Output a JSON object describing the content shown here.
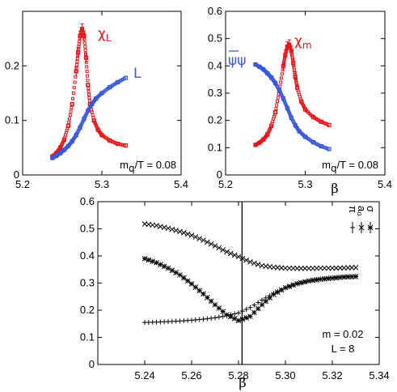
{
  "chart_data": [
    {
      "type": "scatter",
      "xlim": [
        5.2,
        5.4
      ],
      "ylim": [
        0,
        0.3
      ],
      "xticks": [
        "5.2",
        "5.3",
        "5.4"
      ],
      "yticks": [
        "0",
        "0.1",
        "0.2"
      ],
      "xlabel": "",
      "ylabel": "",
      "annotation": "m_q/T = 0.08",
      "grid": false,
      "series": [
        {
          "name": "χ_L",
          "color": "#e8161b",
          "x": [
            5.2375,
            5.2425,
            5.2475,
            5.2525,
            5.2575,
            5.2625,
            5.2675,
            5.27,
            5.2725,
            5.275,
            5.2775,
            5.28,
            5.2825,
            5.285,
            5.29,
            5.295,
            5.3,
            5.31,
            5.32,
            5.33
          ],
          "y": [
            0.034,
            0.04,
            0.05,
            0.065,
            0.09,
            0.13,
            0.19,
            0.225,
            0.255,
            0.268,
            0.255,
            0.215,
            0.165,
            0.13,
            0.1,
            0.083,
            0.073,
            0.063,
            0.057,
            0.054
          ]
        },
        {
          "name": "L",
          "color": "#3a57d8",
          "x": [
            5.2375,
            5.2425,
            5.2475,
            5.2525,
            5.2575,
            5.2625,
            5.2675,
            5.2725,
            5.2775,
            5.2825,
            5.2875,
            5.2925,
            5.3,
            5.31,
            5.32,
            5.33
          ],
          "y": [
            0.031,
            0.035,
            0.04,
            0.046,
            0.053,
            0.062,
            0.073,
            0.087,
            0.103,
            0.118,
            0.13,
            0.14,
            0.15,
            0.161,
            0.17,
            0.178
          ]
        }
      ]
    },
    {
      "type": "scatter",
      "xlim": [
        5.2,
        5.4
      ],
      "ylim": [
        0,
        0.6
      ],
      "xticks": [
        "5.2",
        "5.3",
        "5.4"
      ],
      "yticks": [
        "0",
        "0.1",
        "0.2",
        "0.3",
        "0.4",
        "0.5",
        "0.6"
      ],
      "xlabel": "β",
      "ylabel": "",
      "annotation": "m_q/T = 0.08",
      "grid": false,
      "series": [
        {
          "name": "χ_m",
          "color": "#e8161b",
          "x": [
            5.2375,
            5.2425,
            5.2475,
            5.2525,
            5.2575,
            5.2625,
            5.2675,
            5.2725,
            5.275,
            5.2775,
            5.28,
            5.2825,
            5.285,
            5.2875,
            5.29,
            5.295,
            5.3,
            5.31,
            5.32,
            5.33
          ],
          "y": [
            0.11,
            0.118,
            0.13,
            0.148,
            0.18,
            0.23,
            0.31,
            0.4,
            0.44,
            0.47,
            0.478,
            0.455,
            0.41,
            0.36,
            0.32,
            0.27,
            0.24,
            0.212,
            0.195,
            0.183
          ]
        },
        {
          "name": "ψ̄ψ",
          "color": "#3a57d8",
          "x": [
            5.2375,
            5.2425,
            5.2475,
            5.2525,
            5.2575,
            5.2625,
            5.2675,
            5.2725,
            5.2775,
            5.2825,
            5.2875,
            5.2925,
            5.3,
            5.31,
            5.32,
            5.33
          ],
          "y": [
            0.405,
            0.397,
            0.387,
            0.373,
            0.357,
            0.337,
            0.31,
            0.28,
            0.245,
            0.21,
            0.182,
            0.16,
            0.14,
            0.12,
            0.105,
            0.095
          ]
        }
      ]
    },
    {
      "type": "scatter",
      "xlim": [
        5.22,
        5.34
      ],
      "ylim": [
        0,
        0.6
      ],
      "xticks": [
        "5.24",
        "5.26",
        "5.28",
        "5.30",
        "5.32",
        "5.34"
      ],
      "yticks": [
        "0",
        "0.1",
        "0.2",
        "0.3",
        "0.4",
        "0.5",
        "0.6"
      ],
      "xlabel": "β",
      "ylabel": "",
      "annotation_lines": [
        "m = 0.02",
        "L = 8"
      ],
      "vertical_line_x": 5.2815,
      "grid": false,
      "legend_position": "top-right",
      "series": [
        {
          "name": "π",
          "color": "#000000",
          "marker": "plus",
          "x": [
            5.24,
            5.245,
            5.25,
            5.255,
            5.26,
            5.265,
            5.27,
            5.275,
            5.28,
            5.285,
            5.29,
            5.295,
            5.3,
            5.305,
            5.31,
            5.315,
            5.32,
            5.325,
            5.33
          ],
          "y": [
            0.155,
            0.156,
            0.158,
            0.16,
            0.163,
            0.167,
            0.172,
            0.18,
            0.19,
            0.21,
            0.237,
            0.262,
            0.282,
            0.297,
            0.308,
            0.315,
            0.32,
            0.323,
            0.325
          ]
        },
        {
          "name": "a₀",
          "color": "#000000",
          "marker": "cross",
          "x": [
            5.24,
            5.245,
            5.25,
            5.255,
            5.26,
            5.265,
            5.27,
            5.275,
            5.28,
            5.285,
            5.29,
            5.295,
            5.3,
            5.305,
            5.31,
            5.315,
            5.32,
            5.325,
            5.33
          ],
          "y": [
            0.518,
            0.512,
            0.502,
            0.49,
            0.476,
            0.458,
            0.437,
            0.415,
            0.397,
            0.378,
            0.364,
            0.358,
            0.355,
            0.354,
            0.354,
            0.355,
            0.355,
            0.356,
            0.357
          ]
        },
        {
          "name": "σ",
          "color": "#000000",
          "marker": "star",
          "x": [
            5.24,
            5.245,
            5.25,
            5.255,
            5.26,
            5.265,
            5.27,
            5.275,
            5.28,
            5.285,
            5.29,
            5.295,
            5.3,
            5.305,
            5.31,
            5.315,
            5.32,
            5.325,
            5.33
          ],
          "y": [
            0.39,
            0.375,
            0.355,
            0.33,
            0.297,
            0.26,
            0.22,
            0.183,
            0.162,
            0.177,
            0.22,
            0.258,
            0.283,
            0.298,
            0.308,
            0.314,
            0.318,
            0.322,
            0.324
          ]
        }
      ]
    }
  ]
}
